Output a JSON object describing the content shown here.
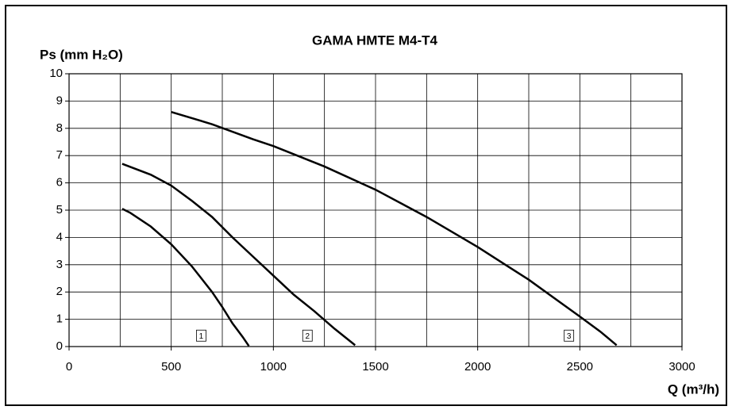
{
  "chart_data": {
    "type": "line",
    "title": "GAMA HMTE M4-T4",
    "y_label": "Ps (mm H₂O)",
    "x_label": "Q (m³/h)",
    "series": [
      {
        "name": "1",
        "color": "#000000",
        "x": [
          260,
          300,
          400,
          500,
          600,
          700,
          750,
          800,
          850,
          880
        ],
        "values": [
          5.05,
          4.9,
          4.4,
          3.75,
          2.95,
          2.0,
          1.45,
          0.85,
          0.35,
          0.02
        ]
      },
      {
        "name": "2",
        "color": "#000000",
        "x": [
          260,
          400,
          500,
          600,
          700,
          800,
          900,
          1000,
          1100,
          1200,
          1300,
          1400
        ],
        "values": [
          6.7,
          6.3,
          5.9,
          5.35,
          4.75,
          4.0,
          3.3,
          2.6,
          1.9,
          1.3,
          0.65,
          0.05
        ]
      },
      {
        "name": "3",
        "color": "#000000",
        "x": [
          500,
          700,
          900,
          1000,
          1250,
          1500,
          1750,
          2000,
          2250,
          2500,
          2600,
          2680
        ],
        "values": [
          8.6,
          8.15,
          7.6,
          7.35,
          6.6,
          5.75,
          4.75,
          3.65,
          2.45,
          1.1,
          0.55,
          0.05
        ]
      }
    ],
    "xlim": [
      0,
      3000
    ],
    "xticks": [
      0,
      500,
      1000,
      1500,
      2000,
      2500,
      3000
    ],
    "xgrid": [
      250,
      500,
      750,
      1000,
      1250,
      1500,
      1750,
      2000,
      2250,
      2500,
      2750
    ],
    "ylim": [
      0,
      10
    ],
    "yticks": [
      0,
      1,
      2,
      3,
      4,
      5,
      6,
      7,
      8,
      9,
      10
    ],
    "grid": true
  }
}
